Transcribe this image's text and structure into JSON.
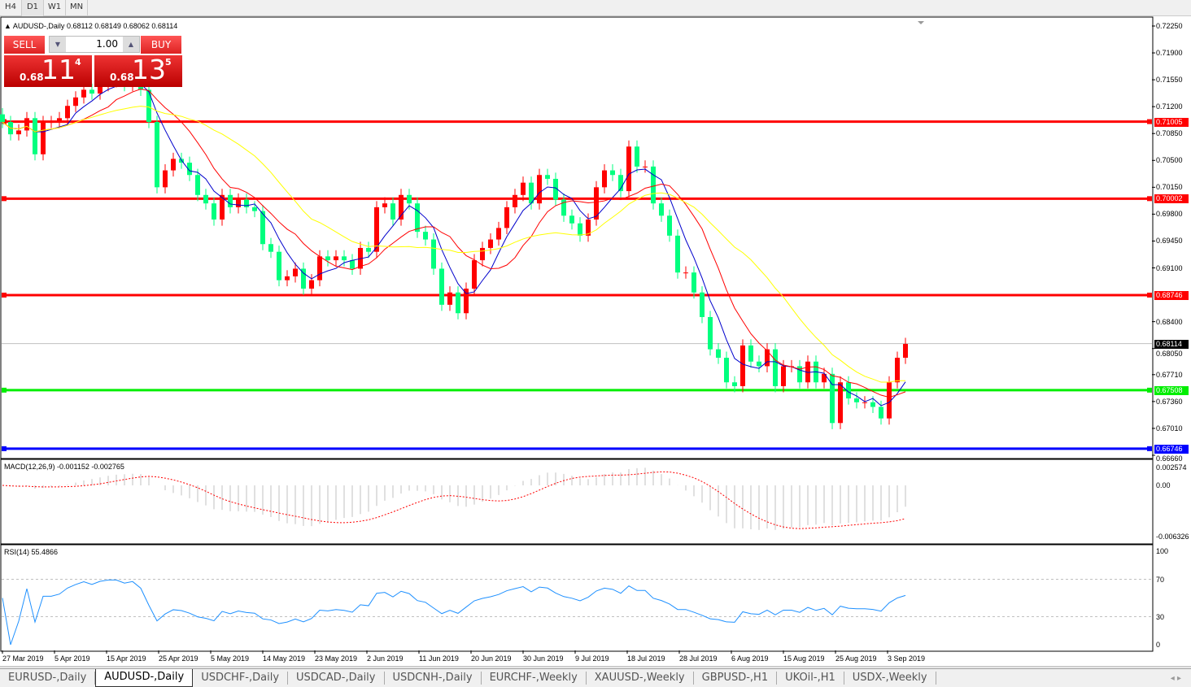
{
  "toolbar": {
    "timeframes": [
      "H4",
      "D1",
      "W1",
      "MN"
    ]
  },
  "header": {
    "symbol": "AUDUSD-,Daily",
    "ohlc": "0.68112 0.68149 0.68062 0.68114"
  },
  "trade_panel": {
    "sell_label": "SELL",
    "buy_label": "BUY",
    "lot": "1.00",
    "sell_price": {
      "prefix": "0.68",
      "big": "11",
      "sup": "4"
    },
    "buy_price": {
      "prefix": "0.68",
      "big": "13",
      "sup": "5"
    }
  },
  "colors": {
    "up": "#ff0000",
    "down": "#00ff7f",
    "ma_fast": "#0000cc",
    "ma_mid": "#ff0000",
    "ma_slow": "#ffff00",
    "support": "#00ee00",
    "bottom": "#0000ff"
  },
  "chart_data": [
    {
      "type": "candlestick",
      "title": "AUDUSD-,Daily",
      "ylim": [
        0.6666,
        0.7225
      ],
      "price_ticks": [
        "0.72250",
        "0.71900",
        "0.71550",
        "0.71200",
        "0.70850",
        "0.70500",
        "0.70150",
        "0.69800",
        "0.69450",
        "0.69100",
        "0.68400",
        "0.68050",
        "0.67710",
        "0.67360",
        "0.67010",
        "0.66660"
      ],
      "x_ticks": [
        "27 Mar 2019",
        "5 Apr 2019",
        "15 Apr 2019",
        "25 Apr 2019",
        "5 May 2019",
        "14 May 2019",
        "23 May 2019",
        "2 Jun 2019",
        "11 Jun 2019",
        "20 Jun 2019",
        "30 Jun 2019",
        "9 Jul 2019",
        "18 Jul 2019",
        "28 Jul 2019",
        "6 Aug 2019",
        "15 Aug 2019",
        "25 Aug 2019",
        "3 Sep 2019"
      ],
      "close": [
        0.71,
        0.7084,
        0.7089,
        0.7105,
        0.7058,
        0.71,
        0.71,
        0.7105,
        0.7121,
        0.7132,
        0.7142,
        0.7137,
        0.7148,
        0.7153,
        0.7153,
        0.7148,
        0.7153,
        0.7142,
        0.71,
        0.7015,
        0.7037,
        0.7052,
        0.7047,
        0.7031,
        0.7005,
        0.6994,
        0.6973,
        0.7005,
        0.6989,
        0.6999,
        0.6989,
        0.6984,
        0.6941,
        0.6931,
        0.6894,
        0.6899,
        0.6909,
        0.6883,
        0.6894,
        0.6925,
        0.692,
        0.6925,
        0.692,
        0.6909,
        0.6936,
        0.6931,
        0.6989,
        0.6994,
        0.6973,
        0.7005,
        0.6994,
        0.6957,
        0.6947,
        0.6909,
        0.6862,
        0.6878,
        0.6851,
        0.6883,
        0.692,
        0.6936,
        0.6947,
        0.6962,
        0.6989,
        0.7005,
        0.7021,
        0.6994,
        0.7031,
        0.7026,
        0.6999,
        0.6978,
        0.6968,
        0.6952,
        0.6973,
        0.7015,
        0.7037,
        0.7031,
        0.701,
        0.7068,
        0.7042,
        0.7042,
        0.6994,
        0.6978,
        0.6952,
        0.6904,
        0.6904,
        0.6878,
        0.6846,
        0.6804,
        0.6793,
        0.6761,
        0.6756,
        0.6809,
        0.6788,
        0.6782,
        0.6804,
        0.6756,
        0.6782,
        0.6782,
        0.6761,
        0.6788,
        0.6761,
        0.6772,
        0.6708,
        0.6761,
        0.674,
        0.6735,
        0.6735,
        0.6729,
        0.6714,
        0.6761,
        0.6793,
        0.6811
      ],
      "levels": [
        {
          "price": 0.71005,
          "label": "0.71005",
          "color": "#ff0000"
        },
        {
          "price": 0.70002,
          "label": "0.70002",
          "color": "#ff0000"
        },
        {
          "price": 0.68746,
          "label": "0.68746",
          "color": "#ff0000"
        },
        {
          "price": 0.67508,
          "label": "0.67508",
          "color": "#00ee00"
        },
        {
          "price": 0.66746,
          "label": "0.66746",
          "color": "#0000ff"
        }
      ],
      "current": {
        "price": 0.68114,
        "label": "0.68114"
      }
    },
    {
      "type": "line",
      "title": "MACD(12,26,9) -0.001152 -0.002765",
      "ticks": [
        "0.002574",
        "0.00",
        "-0.006326"
      ],
      "ylim": [
        -0.006326,
        0.002574
      ]
    },
    {
      "type": "line",
      "title": "RSI(14) 55.4866",
      "ticks": [
        "100",
        "70",
        "30",
        "0"
      ],
      "ylim": [
        0,
        100
      ],
      "levels": [
        30,
        70
      ]
    }
  ],
  "tabs": [
    "EURUSD-,Daily",
    "AUDUSD-,Daily",
    "USDCHF-,Daily",
    "USDCAD-,Daily",
    "USDCNH-,Daily",
    "EURCHF-,Weekly",
    "XAUUSD-,Weekly",
    "GBPUSD-,H1",
    "UKOil-,H1",
    "USDX-,Weekly"
  ],
  "active_tab": 1
}
